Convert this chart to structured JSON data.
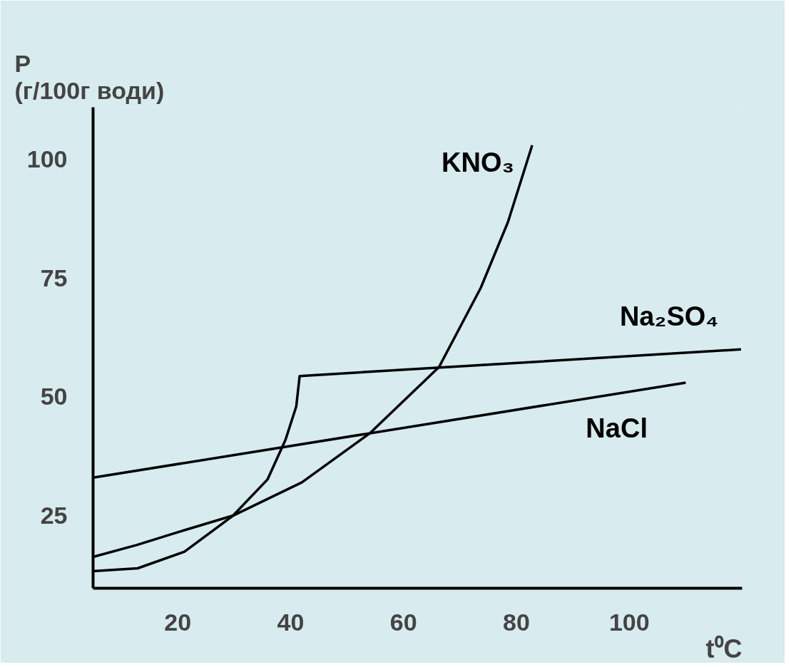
{
  "chart_data": {
    "type": "line",
    "xlabel": "t⁰C",
    "ylabel": "P\n(г/100г води)",
    "xlim": [
      5,
      120
    ],
    "ylim": [
      9.7,
      111
    ],
    "xticks": [
      20,
      40,
      60,
      80,
      100
    ],
    "yticks": [
      25,
      50,
      75,
      100
    ],
    "grid": false,
    "marker": "none",
    "line_style": "solid",
    "series": [
      {
        "name": "KNO₃",
        "color": "#000000",
        "x": [
          5,
          12.7,
          20,
          29.8,
          42,
          54.1,
          66.3,
          73.7,
          78.5,
          82.8
        ],
        "values": [
          16.3,
          18.8,
          21.5,
          25,
          32,
          42.4,
          56.3,
          73,
          86.8,
          103
        ]
      },
      {
        "name": "Na₂SO₄",
        "color": "#000000",
        "x": [
          5,
          12.9,
          21.2,
          29.8,
          35.9,
          39.1,
          41,
          41.6,
          119.8
        ],
        "values": [
          13.3,
          13.9,
          17.4,
          25,
          32.6,
          41,
          48,
          54.4,
          60
        ]
      },
      {
        "name": "NaCl",
        "color": "#000000",
        "x": [
          5,
          110
        ],
        "values": [
          33,
          53
        ]
      }
    ]
  }
}
